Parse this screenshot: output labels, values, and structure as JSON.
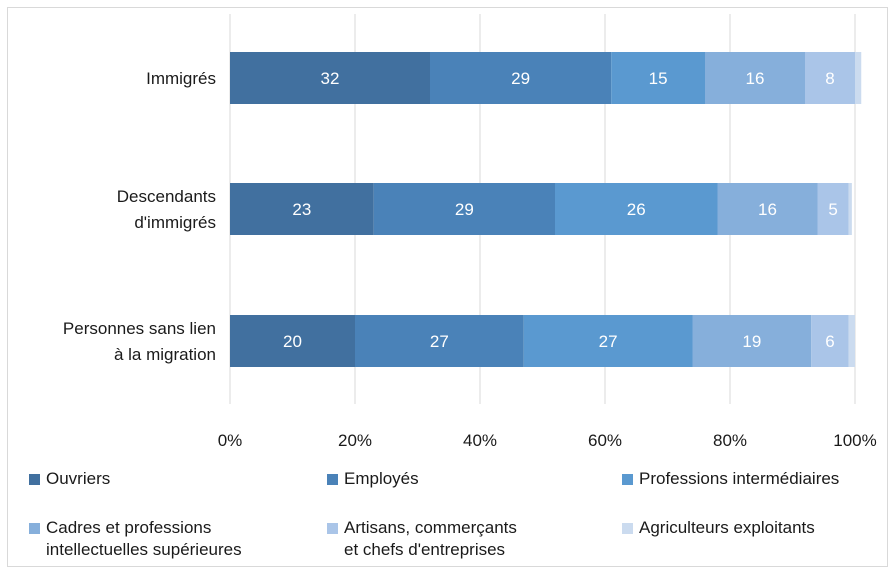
{
  "chart_data": {
    "type": "bar",
    "orientation": "horizontal",
    "stacked": true,
    "categories": [
      "Immigrés",
      "Descendants\nd'immigrés",
      "Personnes sans lien\nà la migration"
    ],
    "series": [
      {
        "name": "Ouvriers",
        "values": [
          32,
          23,
          20
        ],
        "color": "#41709f"
      },
      {
        "name": "Employés",
        "values": [
          29,
          29,
          27
        ],
        "color": "#4a82b8"
      },
      {
        "name": "Professions intermédiaires",
        "values": [
          15,
          26,
          27
        ],
        "color": "#5a99d0"
      },
      {
        "name": "Cadres et professions\nintellectuelles supérieures",
        "values": [
          16,
          16,
          19
        ],
        "color": "#86afdb"
      },
      {
        "name": "Artisans, commerçants\net chefs d'entreprises",
        "values": [
          8,
          5,
          6
        ],
        "color": "#aac5e8"
      },
      {
        "name": "Agriculteurs exploitants",
        "values": [
          1,
          0.5,
          1
        ],
        "color": "#cbdbef"
      }
    ],
    "x_ticks": [
      "0%",
      "20%",
      "40%",
      "60%",
      "80%",
      "100%"
    ],
    "xlim": [
      0,
      100
    ],
    "grid": "vertical",
    "legend_position": "bottom",
    "title": "",
    "xlabel": "",
    "ylabel": ""
  }
}
